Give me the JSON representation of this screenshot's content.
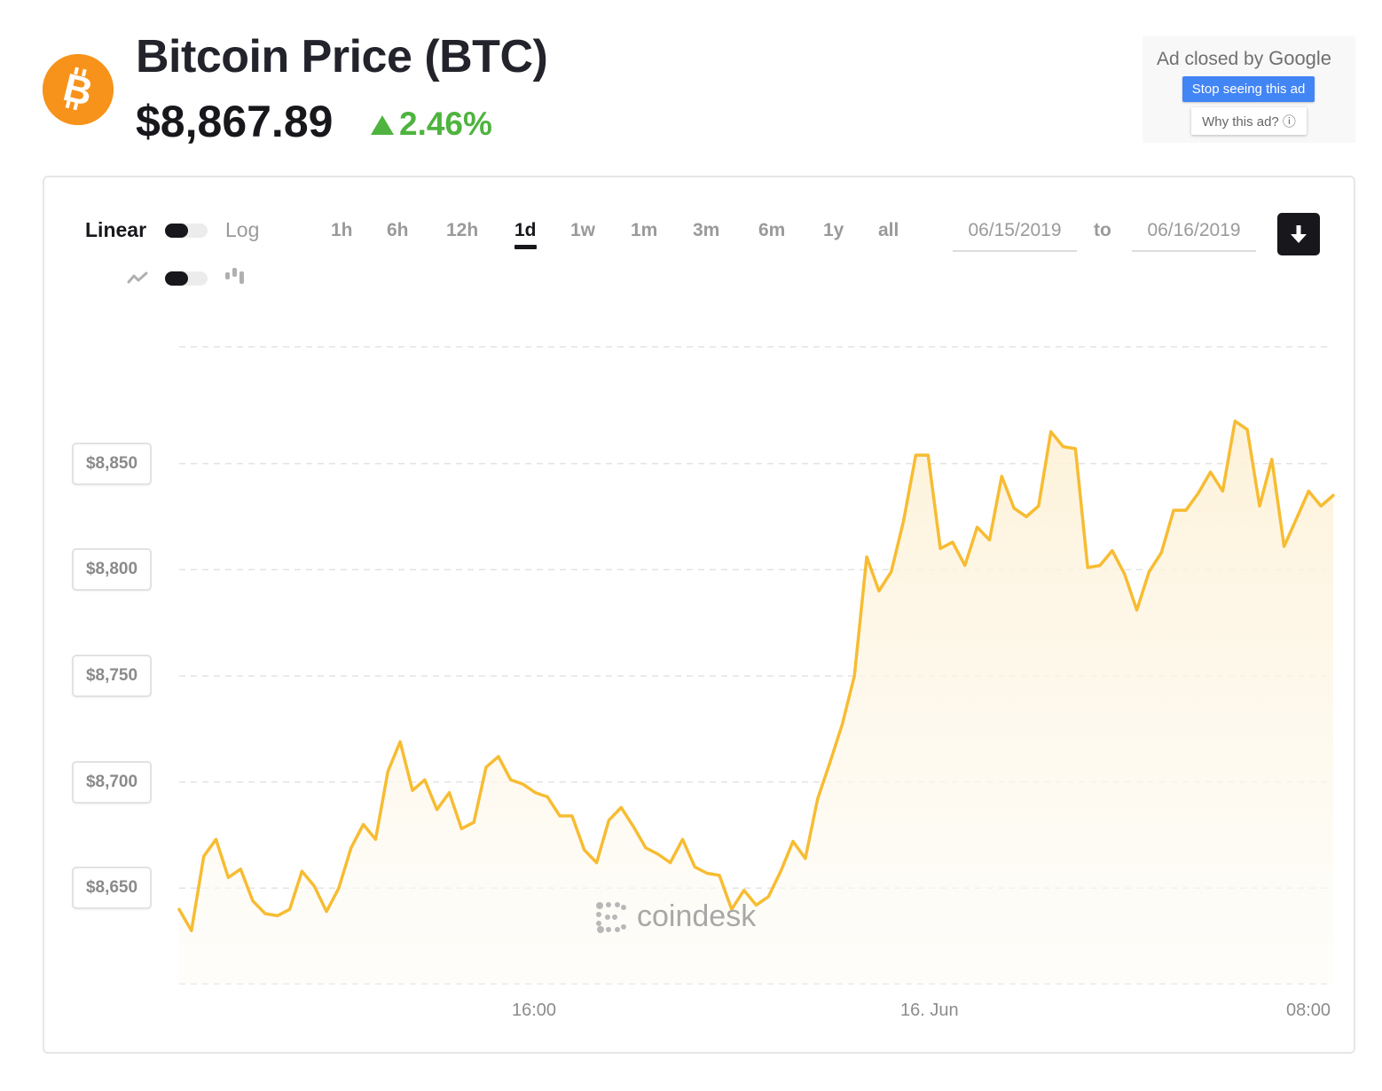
{
  "header": {
    "title": "Bitcoin Price (BTC)",
    "price": "$8,867.89",
    "change": "2.46%"
  },
  "ad": {
    "closed_text": "Ad closed by",
    "brand": "Google",
    "stop_label": "Stop seeing this ad",
    "why_label": "Why this ad? ⓘ"
  },
  "controls": {
    "scale_linear": "Linear",
    "scale_log": "Log",
    "ranges": [
      "1h",
      "6h",
      "12h",
      "1d",
      "1w",
      "1m",
      "3m",
      "6m",
      "1y",
      "all"
    ],
    "active_range": "1d",
    "date_from": "06/15/2019",
    "date_to": "06/16/2019",
    "to_label": "to"
  },
  "watermark": "coindesk",
  "colors": {
    "line": "#f7bc32",
    "accent": "#f7931a",
    "positive": "#4fb33f"
  },
  "chart_data": {
    "type": "area",
    "ylim": [
      8605,
      8905
    ],
    "yticks": [
      8650,
      8700,
      8750,
      8800,
      8850
    ],
    "ytick_labels": [
      "$8,650",
      "$8,700",
      "$8,750",
      "$8,800",
      "$8,850"
    ],
    "xticks": [
      "16:00",
      "16. Jun",
      "08:00"
    ],
    "grid": true,
    "series": [
      {
        "values": [
          8640,
          8630,
          8665,
          8673,
          8655,
          8659,
          8644,
          8638,
          8637,
          8640,
          8658,
          8651,
          8639,
          8650,
          8669,
          8680,
          8673,
          8705,
          8719,
          8696,
          8701,
          8687,
          8695,
          8678,
          8681,
          8707,
          8712,
          8701,
          8699,
          8695,
          8693,
          8684,
          8684,
          8668,
          8662,
          8682,
          8688,
          8679,
          8669,
          8666,
          8662,
          8673,
          8660,
          8657,
          8656,
          8640,
          8649,
          8642,
          8646,
          8658,
          8672,
          8664,
          8692,
          8709,
          8727,
          8750,
          8806,
          8790,
          8799,
          8823,
          8854,
          8854,
          8810,
          8813,
          8802,
          8820,
          8814,
          8844,
          8829,
          8825,
          8830,
          8865,
          8858,
          8857,
          8801,
          8802,
          8809,
          8798,
          8781,
          8799,
          8808,
          8828,
          8828,
          8836,
          8846,
          8837,
          8870,
          8866,
          8830,
          8852,
          8811,
          8824,
          8837,
          8830,
          8835
        ]
      }
    ]
  }
}
